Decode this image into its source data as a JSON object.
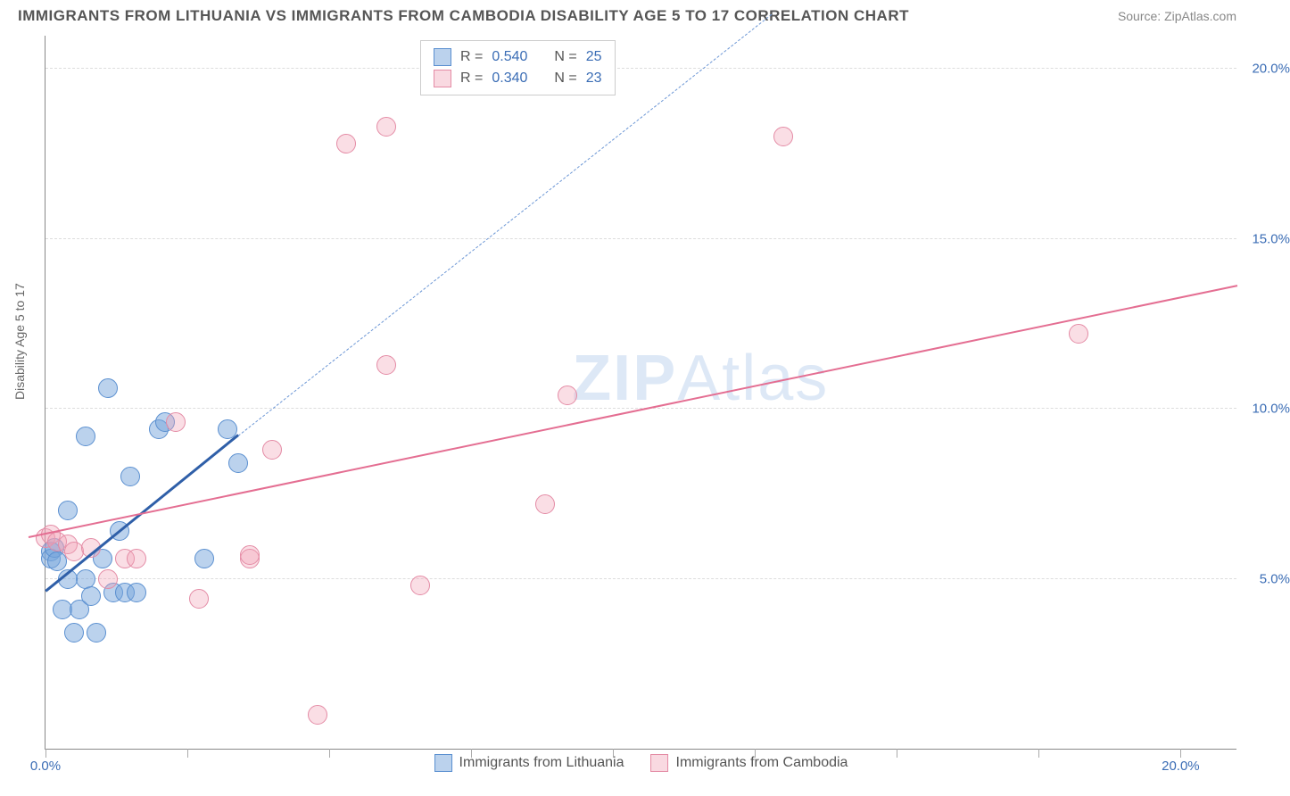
{
  "header": {
    "title": "IMMIGRANTS FROM LITHUANIA VS IMMIGRANTS FROM CAMBODIA DISABILITY AGE 5 TO 17 CORRELATION CHART",
    "source": "Source: ZipAtlas.com"
  },
  "watermark": {
    "bold": "ZIP",
    "thin": "Atlas"
  },
  "chart": {
    "type": "scatter",
    "ylabel": "Disability Age 5 to 17",
    "xlim": [
      0,
      21
    ],
    "ylim": [
      0,
      21
    ],
    "x_ticks": [
      0,
      2.5,
      5,
      7.5,
      10,
      12.5,
      15,
      17.5,
      20
    ],
    "x_tick_labels": {
      "0": "0.0%",
      "20": "20.0%"
    },
    "y_gridlines": [
      5,
      10,
      15,
      20
    ],
    "y_labels": {
      "5": "5.0%",
      "10": "10.0%",
      "15": "15.0%",
      "20": "20.0%"
    },
    "series": [
      {
        "name": "Immigrants from Lithuania",
        "color_fill": "rgba(120,165,220,0.5)",
        "color_stroke": "#5a8fd0",
        "rn": {
          "r": "0.540",
          "n": "25"
        },
        "trend": {
          "x1": 0,
          "y1": 4.6,
          "x2": 3.4,
          "y2": 9.2,
          "dash": false,
          "color": "#2f5fa8",
          "width": 2.5
        },
        "trend_ext": {
          "x1": 3.4,
          "y1": 9.2,
          "x2": 12.8,
          "y2": 21.6,
          "dash": true,
          "color": "#6b96d5",
          "width": 1.5
        },
        "points": [
          [
            0.1,
            5.8
          ],
          [
            0.1,
            5.6
          ],
          [
            0.15,
            5.9
          ],
          [
            0.2,
            5.5
          ],
          [
            0.3,
            4.1
          ],
          [
            0.4,
            7.0
          ],
          [
            0.5,
            3.4
          ],
          [
            0.6,
            4.1
          ],
          [
            0.7,
            9.2
          ],
          [
            0.7,
            5.0
          ],
          [
            0.9,
            3.4
          ],
          [
            1.0,
            5.6
          ],
          [
            1.1,
            10.6
          ],
          [
            1.2,
            4.6
          ],
          [
            1.3,
            6.4
          ],
          [
            1.4,
            4.6
          ],
          [
            1.6,
            4.6
          ],
          [
            1.5,
            8.0
          ],
          [
            2.0,
            9.4
          ],
          [
            2.1,
            9.6
          ],
          [
            2.8,
            5.6
          ],
          [
            3.2,
            9.4
          ],
          [
            3.4,
            8.4
          ],
          [
            0.4,
            5.0
          ],
          [
            0.8,
            4.5
          ]
        ]
      },
      {
        "name": "Immigrants from Cambodia",
        "color_fill": "rgba(240,160,180,0.35)",
        "color_stroke": "#e48ba5",
        "rn": {
          "r": "0.340",
          "n": "23"
        },
        "trend": {
          "x1": -0.3,
          "y1": 6.2,
          "x2": 21,
          "y2": 13.6,
          "dash": false,
          "color": "#e46e92",
          "width": 2
        },
        "points": [
          [
            0.0,
            6.2
          ],
          [
            0.1,
            6.3
          ],
          [
            0.2,
            6.1
          ],
          [
            0.4,
            6.0
          ],
          [
            0.5,
            5.8
          ],
          [
            0.8,
            5.9
          ],
          [
            1.1,
            5.0
          ],
          [
            1.4,
            5.6
          ],
          [
            1.6,
            5.6
          ],
          [
            2.3,
            9.6
          ],
          [
            2.7,
            4.4
          ],
          [
            3.6,
            5.6
          ],
          [
            3.6,
            5.7
          ],
          [
            4.0,
            8.8
          ],
          [
            4.8,
            1.0
          ],
          [
            5.3,
            17.8
          ],
          [
            6.0,
            11.3
          ],
          [
            6.6,
            4.8
          ],
          [
            6.0,
            18.3
          ],
          [
            8.8,
            7.2
          ],
          [
            9.2,
            10.4
          ],
          [
            13.0,
            18.0
          ],
          [
            18.2,
            12.2
          ]
        ]
      }
    ]
  },
  "legend_bottom": [
    {
      "swatch": "blue",
      "label": "Immigrants from Lithuania"
    },
    {
      "swatch": "pink",
      "label": "Immigrants from Cambodia"
    }
  ]
}
